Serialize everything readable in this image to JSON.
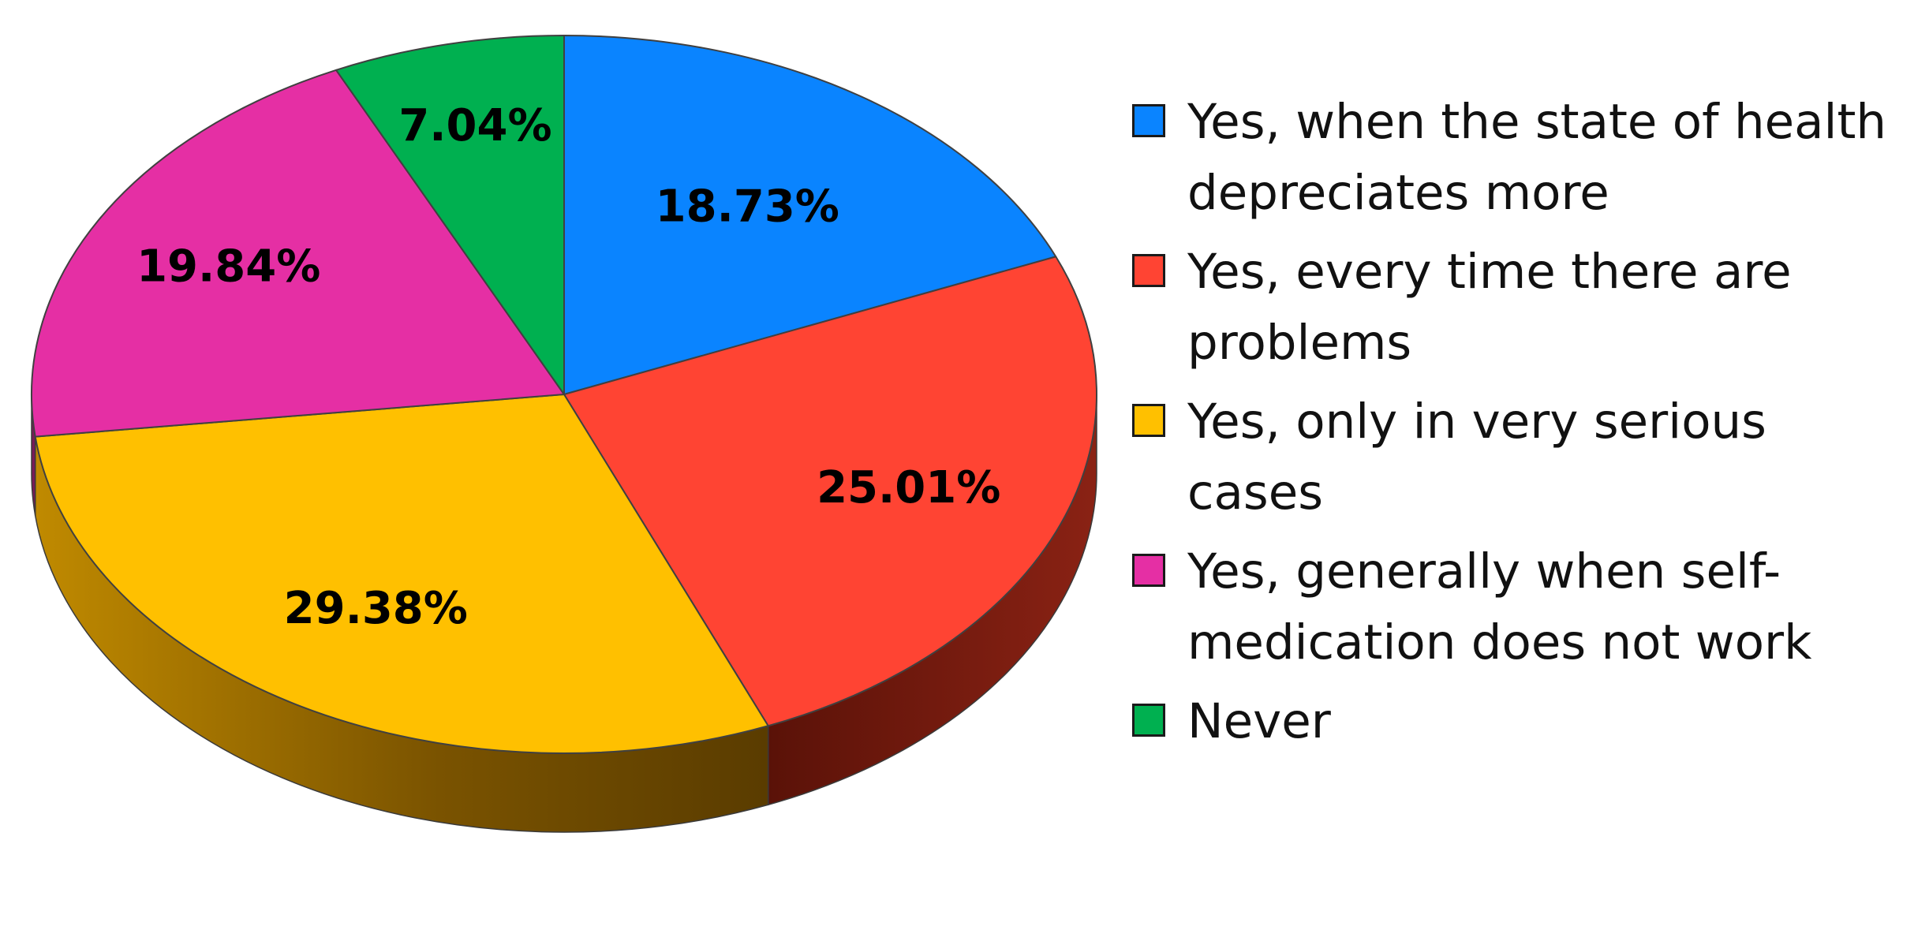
{
  "chart_data": {
    "type": "pie",
    "title": "",
    "slices": [
      {
        "label": "Yes, when the state of health depreciates more",
        "value": 18.73,
        "value_label": "18.73%",
        "color": "#0A84FF",
        "side_color": "#0A4E95"
      },
      {
        "label": "Yes, every time there are problems",
        "value": 25.01,
        "value_label": "25.01%",
        "color": "#FF4433",
        "side_color": "#6E1A10"
      },
      {
        "label": "Yes, only in very serious cases",
        "value": 29.38,
        "value_label": "29.38%",
        "color": "#FFC000",
        "side_color": "#7A5300"
      },
      {
        "label": "Yes, generally when self-medication does not work",
        "value": 19.84,
        "value_label": "19.84%",
        "color": "#E52FA4",
        "side_color": "#7A1B58"
      },
      {
        "label": "Never",
        "value": 7.04,
        "value_label": "7.04%",
        "color": "#00B050",
        "side_color": "#00602B"
      }
    ],
    "legend_position": "right",
    "style": "3d-pie"
  },
  "legend": {
    "items": [
      {
        "lines": [
          "Yes, when the state of health",
          "depreciates more"
        ]
      },
      {
        "lines": [
          "Yes, every time there are",
          "problems"
        ]
      },
      {
        "lines": [
          "Yes, only in very serious",
          "cases"
        ]
      },
      {
        "lines": [
          "Yes, generally when self-",
          "medication does not work"
        ]
      },
      {
        "lines": [
          "Never"
        ]
      }
    ]
  }
}
